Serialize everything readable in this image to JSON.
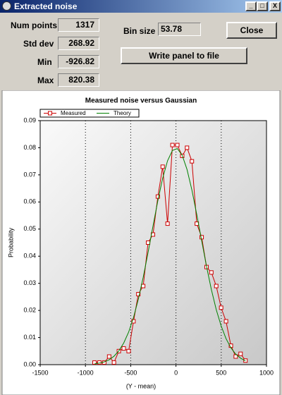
{
  "window": {
    "title": "Extracted noise"
  },
  "stats": [
    {
      "label": "Num points",
      "value": 1317
    },
    {
      "label": "Std dev",
      "value": 268.92
    },
    {
      "label": "Min",
      "value": -926.82
    },
    {
      "label": "Max",
      "value": 820.38
    }
  ],
  "bin_size": {
    "label": "Bin size",
    "value": 53.78
  },
  "buttons": {
    "close": "Close",
    "write": "Write panel to file"
  },
  "chart_data": {
    "type": "line",
    "title": "Measured noise versus Gaussian",
    "xlabel": "(Y - mean)",
    "ylabel": "Probability",
    "x": [
      -900,
      -846,
      -792,
      -738,
      -685,
      -631,
      -577,
      -523,
      -469,
      -416,
      -362,
      -308,
      -254,
      -200,
      -147,
      -93,
      -39,
      15,
      69,
      122,
      176,
      230,
      284,
      338,
      391,
      445,
      499,
      553,
      607,
      660,
      714,
      768
    ],
    "series": [
      {
        "name": "Measured",
        "color": "#cc0000",
        "marker": "square",
        "values": [
          0.0008,
          0.0008,
          0.0008,
          0.003,
          0.0008,
          0.005,
          0.006,
          0.005,
          0.016,
          0.026,
          0.029,
          0.045,
          0.048,
          0.062,
          0.073,
          0.052,
          0.081,
          0.081,
          0.077,
          0.08,
          0.075,
          0.052,
          0.047,
          0.036,
          0.034,
          0.029,
          0.021,
          0.016,
          0.007,
          0.003,
          0.004,
          0.0015
        ]
      },
      {
        "name": "Theory",
        "color": "#008000",
        "values": [
          0.0003,
          0.0006,
          0.001,
          0.0018,
          0.0031,
          0.0051,
          0.008,
          0.012,
          0.0174,
          0.0241,
          0.0322,
          0.0414,
          0.0511,
          0.0605,
          0.0687,
          0.0752,
          0.079,
          0.0797,
          0.0772,
          0.072,
          0.0644,
          0.0553,
          0.0457,
          0.0362,
          0.0277,
          0.0203,
          0.0143,
          0.0096,
          0.0062,
          0.0039,
          0.0024,
          0.0014
        ]
      }
    ],
    "xlim": [
      -1500,
      1000
    ],
    "ylim": [
      0,
      0.09
    ],
    "xticks": [
      -1500,
      -1000,
      -500,
      0,
      500,
      1000
    ],
    "yticks": [
      {
        "value": 0,
        "label": "0.00"
      },
      0.01,
      0.02,
      0.03,
      0.04,
      0.05,
      0.06,
      0.07,
      0.08,
      0.09
    ],
    "grid": "x"
  }
}
